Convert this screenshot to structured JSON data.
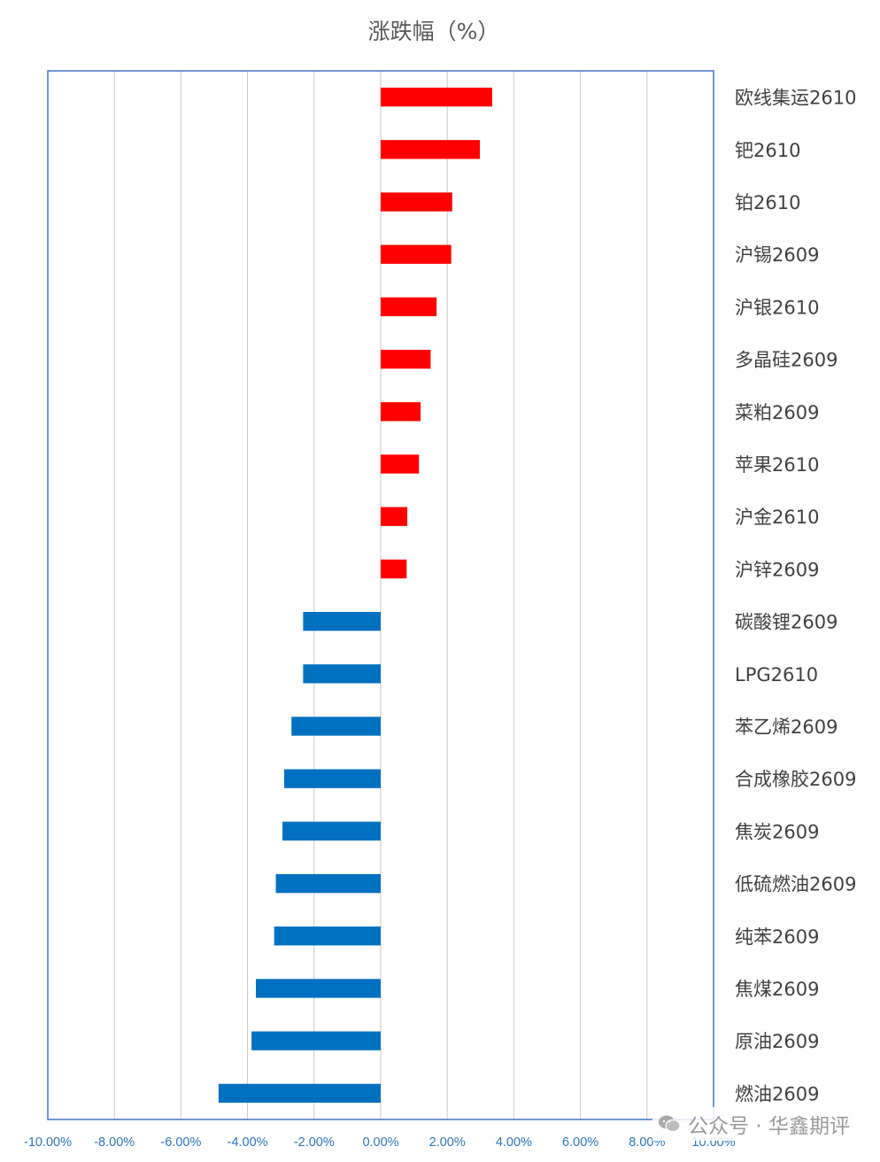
{
  "chart_data": {
    "type": "bar",
    "orientation": "horizontal",
    "title": "涨跌幅（%）",
    "xlim": [
      -10,
      10
    ],
    "x_ticks": [
      -10,
      -8,
      -6,
      -4,
      -2,
      0,
      2,
      4,
      6,
      8,
      10
    ],
    "x_tick_labels": [
      "-10.00%",
      "-8.00%",
      "-6.00%",
      "-4.00%",
      "-2.00%",
      "0.00%",
      "2.00%",
      "4.00%",
      "6.00%",
      "8.00%",
      "10.00%"
    ],
    "grid": "vertical",
    "category_labels_position": "right",
    "colors": {
      "positive": "#ff0000",
      "negative": "#0070c0",
      "frame": "#4472c4",
      "grid": "#c8c8c8"
    },
    "categories": [
      "欧线集运2610",
      "钯2610",
      "铂2610",
      "沪锡2609",
      "沪银2610",
      "多晶硅2609",
      "菜粕2609",
      "苹果2610",
      "沪金2610",
      "沪锌2609",
      "碳酸锂2609",
      "LPG2610",
      "苯乙烯2609",
      "合成橡胶2609",
      "焦炭2609",
      "低硫燃油2609",
      "纯苯2609",
      "焦煤2609",
      "原油2609",
      "燃油2609"
    ],
    "values": [
      3.35,
      2.98,
      2.15,
      2.12,
      1.68,
      1.5,
      1.2,
      1.15,
      0.8,
      0.78,
      -2.33,
      -2.33,
      -2.68,
      -2.9,
      -2.95,
      -3.15,
      -3.2,
      -3.75,
      -3.88,
      -4.87
    ]
  },
  "watermark": {
    "text": "公众号 · 华鑫期评",
    "icon": "wechat-icon"
  }
}
